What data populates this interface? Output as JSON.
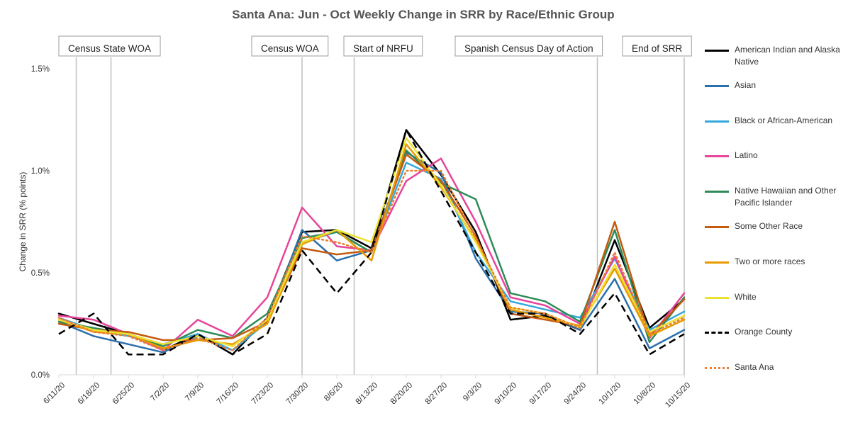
{
  "chart_data": {
    "type": "line",
    "title": "Santa Ana: Jun - Oct Weekly Change in SRR by Race/Ethnic Group",
    "xlabel": "",
    "ylabel": "Change in SRR (% points)",
    "ylim": [
      0,
      1.5
    ],
    "yticks": [
      "0.0%",
      "0.5%",
      "1.0%",
      "1.5%"
    ],
    "ytick_values": [
      0,
      0.5,
      1.0,
      1.5
    ],
    "grid": false,
    "legend_position": "right",
    "categories": [
      "6/11/20",
      "6/18/20",
      "6/25/20",
      "7/2/20",
      "7/9/20",
      "7/16/20",
      "7/23/20",
      "7/30/20",
      "8/6/20",
      "8/13/20",
      "8/20/20",
      "8/27/20",
      "9/3/20",
      "9/10/20",
      "9/17/20",
      "9/24/20",
      "10/1/20",
      "10/8/20",
      "10/15/20"
    ],
    "annotations": [
      {
        "label": "Census State WOA",
        "at": [
          0.5,
          1.5
        ]
      },
      {
        "label": "Census WOA",
        "at": [
          7
        ]
      },
      {
        "label": "Start of NRFU",
        "at": [
          8.5
        ]
      },
      {
        "label": "Spanish Census Day of Action",
        "at": [
          15.5
        ]
      },
      {
        "label": "End of SRR",
        "at": [
          18
        ]
      }
    ],
    "series": [
      {
        "name": "American Indian and Alaska Native",
        "color": "#000000",
        "dash": "solid",
        "values": [
          0.3,
          0.25,
          0.2,
          0.12,
          0.2,
          0.1,
          0.28,
          0.7,
          0.71,
          0.62,
          1.2,
          0.98,
          0.7,
          0.27,
          0.29,
          0.22,
          0.66,
          0.23,
          0.37
        ]
      },
      {
        "name": "Asian",
        "color": "#2b6fad",
        "dash": "solid",
        "values": [
          0.26,
          0.19,
          0.15,
          0.11,
          0.19,
          0.12,
          0.26,
          0.71,
          0.56,
          0.61,
          1.09,
          0.99,
          0.57,
          0.31,
          0.3,
          0.22,
          0.47,
          0.13,
          0.22
        ]
      },
      {
        "name": "Black or African-American",
        "color": "#35a7dc",
        "dash": "solid",
        "values": [
          0.28,
          0.22,
          0.19,
          0.15,
          0.2,
          0.12,
          0.26,
          0.65,
          0.7,
          0.6,
          1.04,
          0.96,
          0.6,
          0.36,
          0.32,
          0.28,
          0.57,
          0.22,
          0.31
        ]
      },
      {
        "name": "Latino",
        "color": "#e8449a",
        "dash": "solid",
        "values": [
          0.29,
          0.27,
          0.2,
          0.12,
          0.27,
          0.19,
          0.38,
          0.82,
          0.63,
          0.61,
          0.95,
          1.06,
          0.75,
          0.38,
          0.34,
          0.25,
          0.58,
          0.18,
          0.4
        ]
      },
      {
        "name": "Native Hawaiian and Other Pacific Islander",
        "color": "#2e8b57",
        "dash": "solid",
        "values": [
          0.26,
          0.23,
          0.2,
          0.14,
          0.22,
          0.18,
          0.3,
          0.67,
          0.7,
          0.6,
          1.1,
          0.94,
          0.86,
          0.4,
          0.36,
          0.26,
          0.71,
          0.16,
          0.38
        ]
      },
      {
        "name": "Some Other Race",
        "color": "#c55a11",
        "dash": "solid",
        "values": [
          0.25,
          0.22,
          0.21,
          0.17,
          0.17,
          0.18,
          0.26,
          0.62,
          0.59,
          0.61,
          1.08,
          0.95,
          0.68,
          0.3,
          0.27,
          0.24,
          0.75,
          0.19,
          0.37
        ]
      },
      {
        "name": "Two or more races",
        "color": "#e69b00",
        "dash": "solid",
        "values": [
          0.27,
          0.21,
          0.2,
          0.13,
          0.17,
          0.15,
          0.25,
          0.64,
          0.71,
          0.56,
          1.13,
          0.92,
          0.66,
          0.32,
          0.28,
          0.24,
          0.52,
          0.19,
          0.27
        ]
      },
      {
        "name": "White",
        "color": "#ede132",
        "dash": "solid",
        "values": [
          0.27,
          0.22,
          0.2,
          0.15,
          0.19,
          0.14,
          0.27,
          0.65,
          0.71,
          0.65,
          1.16,
          0.93,
          0.65,
          0.33,
          0.3,
          0.23,
          0.54,
          0.21,
          0.29
        ]
      },
      {
        "name": "Orange County",
        "color": "#000000",
        "dash": "dashed",
        "values": [
          0.2,
          0.3,
          0.1,
          0.1,
          0.2,
          0.1,
          0.2,
          0.61,
          0.4,
          0.6,
          1.2,
          0.9,
          0.6,
          0.3,
          0.3,
          0.2,
          0.4,
          0.1,
          0.2
        ]
      },
      {
        "name": "Santa Ana",
        "color": "#ed7d31",
        "dash": "dotted",
        "values": [
          0.28,
          0.21,
          0.19,
          0.12,
          0.18,
          0.12,
          0.28,
          0.68,
          0.65,
          0.6,
          1.0,
          1.0,
          0.67,
          0.33,
          0.3,
          0.23,
          0.6,
          0.2,
          0.28
        ]
      }
    ]
  }
}
